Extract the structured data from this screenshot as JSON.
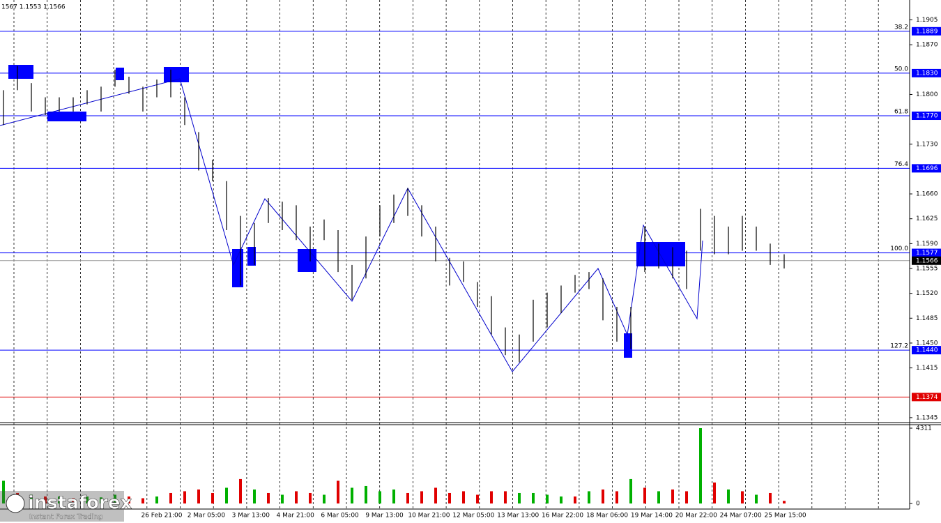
{
  "chart_data": {
    "type": "ohlc",
    "header": "1567 1.1553 1.1566",
    "ylim": [
      1.1339,
      1.1933
    ],
    "yticks": [
      1.1905,
      {
        "value": 1.187,
        "label": "1.1870"
      },
      {
        "value": 1.18,
        "label": "1.1800"
      },
      {
        "value": 1.173,
        "label": "1.1730"
      },
      {
        "value": 1.166,
        "label": "1.1660"
      },
      1.1625,
      {
        "value": 1.159,
        "label": "1.1590"
      },
      1.1555,
      {
        "value": 1.152,
        "label": "1.1520"
      },
      1.1485,
      {
        "value": 1.145,
        "label": "1.1450"
      },
      1.1415,
      1.1345
    ],
    "x_labels": [
      "26 Feb 21:00",
      "2 Mar 05:00",
      "3 Mar 13:00",
      "4 Mar 21:00",
      "6 Mar 05:00",
      "9 Mar 13:00",
      "10 Mar 21:00",
      "12 Mar 05:00",
      "13 Mar 13:00",
      "16 Mar 22:00",
      "18 Mar 06:00",
      "19 Mar 14:00",
      "20 Mar 22:00",
      "24 Mar 07:00",
      "25 Mar 15:00"
    ],
    "high": [
      1.1806,
      1.184,
      1.1816,
      1.1796,
      1.1796,
      1.1796,
      1.1806,
      1.1811,
      1.1835,
      1.1825,
      1.1811,
      1.1821,
      1.1835,
      1.1796,
      1.1747,
      1.1708,
      1.1678,
      1.1629,
      1.1619,
      1.1654,
      1.1649,
      1.1644,
      1.1614,
      1.1624,
      1.1609,
      1.156,
      1.16,
      1.1644,
      1.1659,
      1.1668,
      1.1644,
      1.1614,
      1.157,
      1.1565,
      1.1536,
      1.1516,
      1.1472,
      1.1462,
      1.1511,
      1.1521,
      1.1531,
      1.1546,
      1.155,
      1.1541,
      1.1501,
      1.1501,
      1.1614,
      1.159,
      1.1585,
      1.158,
      1.1639,
      1.1629,
      1.1614,
      1.1629,
      1.1614,
      1.159,
      1.1575
    ],
    "low": [
      1.1757,
      1.1806,
      1.1776,
      1.1771,
      1.1776,
      1.1776,
      1.1786,
      1.1776,
      1.1811,
      1.1801,
      1.1776,
      1.1796,
      1.1796,
      1.1757,
      1.1693,
      1.1678,
      1.1609,
      1.1531,
      1.156,
      1.1619,
      1.1609,
      1.1595,
      1.1565,
      1.1595,
      1.155,
      1.1511,
      1.1541,
      1.16,
      1.1619,
      1.1629,
      1.16,
      1.1565,
      1.1531,
      1.1536,
      1.1501,
      1.1462,
      1.1433,
      1.1423,
      1.1452,
      1.1472,
      1.1492,
      1.1521,
      1.1526,
      1.1482,
      1.1452,
      1.1442,
      1.155,
      1.1555,
      1.1541,
      1.1526,
      1.158,
      1.1575,
      1.1575,
      1.158,
      1.158,
      1.156,
      1.1555
    ],
    "levels": [
      {
        "name": "38.2",
        "value": 1.1889,
        "label": "1.1889",
        "color": "#0000ff"
      },
      {
        "name": "50.0",
        "value": 1.183,
        "label": "1.1830",
        "color": "#0000ff"
      },
      {
        "name": "61.8",
        "value": 1.177,
        "label": "1.1770",
        "color": "#0000ff"
      },
      {
        "name": "76.4",
        "value": 1.1696,
        "label": "1.1696",
        "color": "#0000ff"
      },
      {
        "name": "100.0",
        "value": 1.1577,
        "label": "1.1577",
        "color": "#0000ff"
      },
      {
        "name": "127.2",
        "value": 1.144,
        "label": "1.1440",
        "color": "#0000ff"
      },
      {
        "value": 1.1374,
        "label": "1.1374",
        "color": "#e00000"
      }
    ],
    "last": {
      "value": 1.1566,
      "label": "1.1566"
    },
    "volume": {
      "ylim": [
        0,
        4311
      ],
      "yticks": [
        0,
        4311
      ],
      "values": [
        1300,
        600,
        500,
        400,
        400,
        300,
        400,
        350,
        500,
        400,
        300,
        400,
        600,
        700,
        800,
        600,
        900,
        1400,
        800,
        600,
        500,
        700,
        600,
        500,
        1300,
        900,
        1000,
        700,
        800,
        600,
        700,
        900,
        600,
        700,
        500,
        700,
        700,
        600,
        600,
        500,
        400,
        400,
        700,
        800,
        700,
        1400,
        900,
        700,
        800,
        700,
        4311,
        1200,
        800,
        700,
        500,
        600,
        150
      ],
      "colors": [
        "#00b000",
        "#e00000",
        "#00b000",
        "#e00000",
        "#00b000",
        "#e00000",
        "#00b000",
        "#00b000",
        "#00b000",
        "#e00000",
        "#e00000",
        "#00b000",
        "#e00000",
        "#e00000",
        "#e00000",
        "#e00000",
        "#00b000",
        "#e00000",
        "#00b000",
        "#e00000",
        "#00b000",
        "#e00000",
        "#e00000",
        "#00b000",
        "#e00000",
        "#00b000",
        "#00b000",
        "#00b000",
        "#00b000",
        "#e00000",
        "#e00000",
        "#e00000",
        "#e00000",
        "#e00000",
        "#e00000",
        "#e00000",
        "#e00000",
        "#00b000",
        "#00b000",
        "#00b000",
        "#00b000",
        "#e00000",
        "#00b000",
        "#e00000",
        "#e00000",
        "#00b000",
        "#e00000",
        "#00b000",
        "#e00000",
        "#e00000",
        "#00b000",
        "#e00000",
        "#00b000",
        "#e00000",
        "#00b000",
        "#e00000",
        "#e00000"
      ]
    },
    "watermark": {
      "brand": "instaforex",
      "tagline": "Instant Forex Trading"
    }
  }
}
